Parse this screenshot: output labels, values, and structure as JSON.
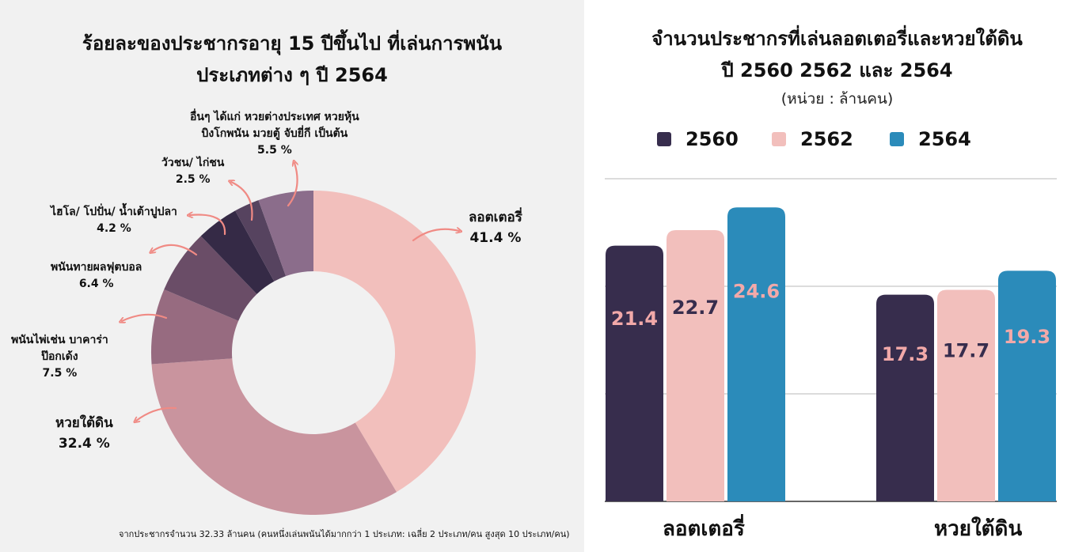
{
  "left": {
    "title_line1": "ร้อยละของประชากรอายุ 15 ปีขึ้นไป ที่เล่นการพนัน",
    "title_line2": "ประเภทต่าง ๆ ปี 2564",
    "note": "จากประชากรจำนวน 32.33 ล้านคน (คนหนึ่งเล่นพนันได้มากกว่า 1 ประเภท: เฉลี่ย 2 ประเภท/คน สูงสุด 10 ประเภท/คน)",
    "labels": {
      "lottery_name": "ลอตเตอรี่",
      "lottery_pct": "41.4 %",
      "underground_name": "หวยใต้ดิน",
      "underground_pct": "32.4 %",
      "cards_name1": "พนันไพ่เช่น บาคาร่า",
      "cards_name2": "ป๊อกเด้ง",
      "cards_pct": "7.5 %",
      "football_name": "พนันทายผลฟุตบอล",
      "football_pct": "6.4 %",
      "hilo_name": "ไฮโล/ โปปั่น/ น้ำเต้าปูปลา",
      "hilo_pct": "4.2 %",
      "animal_name": "วัวชน/ ไก่ชน",
      "animal_pct": "2.5 %",
      "other_name1": "อื่นๆ ได้แก่ หวยต่างประเทศ หวยหุ้น",
      "other_name2": "บิงโกพนัน  มวยตู้ จับยี่กี  เป็นต้น",
      "other_pct": "5.5 %"
    }
  },
  "right": {
    "title_line1": "จำนวนประชากรที่เล่นลอตเตอรี่และหวยใต้ดิน",
    "title_line2": "ปี 2560 2562 และ 2564",
    "subtitle": "(หน่วย : ล้านคน)",
    "legend": [
      "2560",
      "2562",
      "2564"
    ]
  },
  "chart_data": [
    {
      "type": "pie",
      "variant": "donut",
      "title": "ร้อยละของประชากรอายุ 15 ปีขึ้นไป ที่เล่นการพนัน ประเภทต่าง ๆ ปี 2564",
      "slices": [
        {
          "label": "ลอตเตอรี่",
          "value": 41.4,
          "color": "#f2bfbc"
        },
        {
          "label": "หวยใต้ดิน",
          "value": 32.4,
          "color": "#c9949e"
        },
        {
          "label": "พนันไพ่เช่น บาคาร่า ป๊อกเด้ง",
          "value": 7.5,
          "color": "#976b80"
        },
        {
          "label": "พนันทายผลฟุตบอล",
          "value": 6.4,
          "color": "#6a4d67"
        },
        {
          "label": "ไฮโล/ โปปั่น/ น้ำเต้าปูปลา",
          "value": 4.2,
          "color": "#352a46"
        },
        {
          "label": "วัวชน/ ไก่ชน",
          "value": 2.5,
          "color": "#56435f"
        },
        {
          "label": "อื่นๆ ได้แก่ หวยต่างประเทศ หวยหุ้น บิงโกพนัน มวยตู้ จับยี่กี เป็นต้น",
          "value": 5.5,
          "color": "#8b6d8b"
        }
      ]
    },
    {
      "type": "bar",
      "title": "จำนวนประชากรที่เล่นลอตเตอรี่และหวยใต้ดิน ปี 2560 2562 และ 2564",
      "subtitle": "(หน่วย : ล้านคน)",
      "categories": [
        "ลอตเตอรี่",
        "หวยใต้ดิน"
      ],
      "series": [
        {
          "name": "2560",
          "values": [
            21.4,
            17.3
          ],
          "color": "#372d4d",
          "label_color": "#f2a9a9"
        },
        {
          "name": "2562",
          "values": [
            22.7,
            17.7
          ],
          "color": "#f2bfbc",
          "label_color": "#372d4d"
        },
        {
          "name": "2564",
          "values": [
            24.6,
            19.3
          ],
          "color": "#2b8bba",
          "label_color": "#f2a9a9"
        }
      ],
      "ylim": [
        0,
        27
      ],
      "grid": true,
      "legend": "top"
    }
  ]
}
